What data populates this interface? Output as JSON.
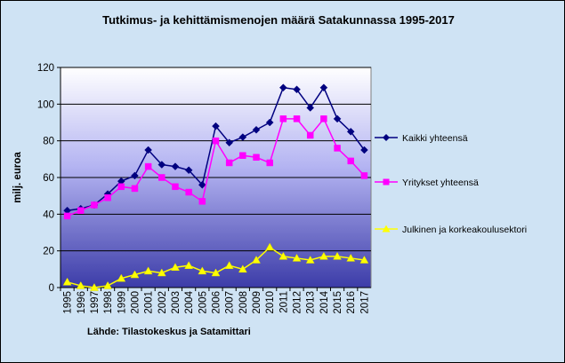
{
  "chart_data": {
    "type": "line",
    "title": "Tutkimus- ja kehittämismenojen määrä Satakunnassa 1995-2017",
    "ylabel": "milj. euroa",
    "xlabel": "",
    "source": "Lähde: Tilastokeskus ja Satamittari",
    "ylim": [
      0,
      120
    ],
    "yticks": [
      "0",
      "20",
      "40",
      "60",
      "80",
      "100",
      "120"
    ],
    "grid": "horizontal",
    "legend_position": "right",
    "x": [
      "1995",
      "1996",
      "1997",
      "1998",
      "1999",
      "2000",
      "2001",
      "2002",
      "2003",
      "2004",
      "2005",
      "2006",
      "2007",
      "2008",
      "2009",
      "2010",
      "2011",
      "2012",
      "2013",
      "2014",
      "2015",
      "2016",
      "2017"
    ],
    "series": [
      {
        "name": "Kaikki yhteensä",
        "color": "#000080",
        "marker": "diamond",
        "values": [
          42,
          43,
          45,
          51,
          58,
          61,
          75,
          67,
          66,
          64,
          56,
          88,
          79,
          82,
          86,
          90,
          109,
          108,
          98,
          109,
          92,
          85,
          75
        ]
      },
      {
        "name": "Yritykset yhteensä",
        "color": "#ff00ff",
        "marker": "square",
        "values": [
          39,
          42,
          45,
          49,
          55,
          54,
          66,
          60,
          55,
          52,
          47,
          80,
          68,
          72,
          71,
          68,
          92,
          92,
          83,
          92,
          76,
          69,
          61
        ]
      },
      {
        "name": "Julkinen ja korkeakoulusektori",
        "color": "#ffff00",
        "marker": "triangle",
        "values": [
          3,
          1,
          0,
          1,
          5,
          7,
          9,
          8,
          11,
          12,
          9,
          8,
          12,
          10,
          15,
          22,
          17,
          16,
          15,
          17,
          17,
          16,
          15
        ]
      }
    ]
  }
}
